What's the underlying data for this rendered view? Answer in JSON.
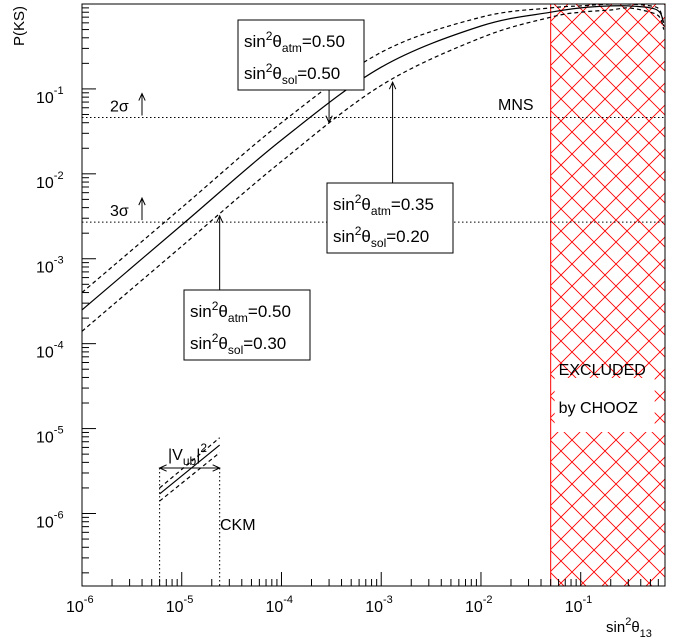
{
  "chart_data": {
    "type": "line",
    "ylabel": "P(KS)",
    "xlabel": {
      "base": "sin",
      "sup": "2",
      "main": "θ",
      "sub": "13"
    },
    "xscale": "log",
    "yscale": "log",
    "xlim": [
      1e-06,
      0.7
    ],
    "ylim": [
      1.4e-07,
      1.0
    ],
    "x_ticks": [
      {
        "value": 1e-06,
        "base": "10",
        "exp": "-6"
      },
      {
        "value": 1e-05,
        "base": "10",
        "exp": "-5"
      },
      {
        "value": 0.0001,
        "base": "10",
        "exp": "-4"
      },
      {
        "value": 0.001,
        "base": "10",
        "exp": "-3"
      },
      {
        "value": 0.01,
        "base": "10",
        "exp": "-2"
      },
      {
        "value": 0.1,
        "base": "10",
        "exp": "-1"
      }
    ],
    "y_ticks": [
      {
        "value": 1e-06,
        "base": "10",
        "exp": "-6"
      },
      {
        "value": 1e-05,
        "base": "10",
        "exp": "-5"
      },
      {
        "value": 0.0001,
        "base": "10",
        "exp": "-4"
      },
      {
        "value": 0.001,
        "base": "10",
        "exp": "-3"
      },
      {
        "value": 0.01,
        "base": "10",
        "exp": "-2"
      },
      {
        "value": 0.1,
        "base": "10",
        "exp": "-1"
      }
    ],
    "series": [
      {
        "style": "solid",
        "points": [
          [
            1e-06,
            0.00025
          ],
          [
            1e-05,
            0.0025
          ],
          [
            0.0001,
            0.025
          ],
          [
            0.001,
            0.18
          ],
          [
            0.01,
            0.55
          ],
          [
            0.05,
            0.8
          ],
          [
            0.1,
            0.9
          ],
          [
            0.2,
            0.95
          ],
          [
            0.3,
            0.95
          ],
          [
            0.5,
            0.9
          ],
          [
            0.62,
            0.8
          ],
          [
            0.68,
            0.6
          ]
        ]
      },
      {
        "style": "dashed",
        "points": [
          [
            1e-06,
            0.0004
          ],
          [
            1e-05,
            0.004
          ],
          [
            0.0001,
            0.04
          ],
          [
            0.001,
            0.27
          ],
          [
            0.01,
            0.7
          ],
          [
            0.05,
            0.9
          ],
          [
            0.1,
            0.95
          ],
          [
            0.2,
            1.0
          ],
          [
            0.3,
            1.0
          ],
          [
            0.5,
            0.95
          ],
          [
            0.62,
            0.85
          ],
          [
            0.68,
            0.55
          ]
        ]
      },
      {
        "style": "dashed",
        "points": [
          [
            1e-06,
            0.00014
          ],
          [
            1e-05,
            0.0014
          ],
          [
            0.0001,
            0.014
          ],
          [
            0.001,
            0.11
          ],
          [
            0.01,
            0.4
          ],
          [
            0.05,
            0.7
          ],
          [
            0.1,
            0.8
          ],
          [
            0.2,
            0.85
          ],
          [
            0.3,
            0.9
          ],
          [
            0.5,
            0.8
          ],
          [
            0.62,
            0.7
          ],
          [
            0.68,
            0.5
          ]
        ]
      }
    ],
    "ckm_band": {
      "label": "CKM",
      "x_range": [
        6e-06,
        2.4e-05
      ],
      "vub_label": {
        "main": "|V",
        "sub": "ub",
        "rest": "|",
        "sup": "2"
      },
      "solid": [
        [
          6e-06,
          1.7e-06
        ],
        [
          2.4e-05,
          6.4e-06
        ]
      ],
      "upper": [
        [
          6e-06,
          2e-06
        ],
        [
          2.4e-05,
          7.8e-06
        ]
      ],
      "lower": [
        [
          6e-06,
          1.4e-06
        ],
        [
          2.4e-05,
          5.2e-06
        ]
      ]
    },
    "horizontal_lines": [
      {
        "label": "2σ",
        "y": 0.046
      },
      {
        "label": "3σ",
        "y": 0.0027
      }
    ],
    "excluded_region": {
      "x_range": [
        0.05,
        0.7
      ],
      "color": "#ff0000",
      "label_lines": [
        "EXCLUDED",
        "by CHOOZ"
      ]
    },
    "annotations": [
      {
        "label": "MNS"
      },
      {
        "lines": [
          {
            "base": "sin",
            "sup": "2",
            "main": "θ",
            "sub": "atm",
            "value": "=0.50"
          },
          {
            "base": "sin",
            "sup": "2",
            "main": "θ",
            "sub": "sol",
            "value": "=0.50"
          }
        ],
        "points_to": [
          0.0003,
          0.04
        ]
      },
      {
        "lines": [
          {
            "base": "sin",
            "sup": "2",
            "main": "θ",
            "sub": "atm",
            "value": "=0.35"
          },
          {
            "base": "sin",
            "sup": "2",
            "main": "θ",
            "sub": "sol",
            "value": "=0.20"
          }
        ],
        "points_to": [
          0.0013,
          0.12
        ]
      },
      {
        "lines": [
          {
            "base": "sin",
            "sup": "2",
            "main": "θ",
            "sub": "atm",
            "value": "=0.50"
          },
          {
            "base": "sin",
            "sup": "2",
            "main": "θ",
            "sub": "sol",
            "value": "=0.30"
          }
        ],
        "points_to": [
          2.4e-05,
          0.0032
        ]
      }
    ]
  }
}
